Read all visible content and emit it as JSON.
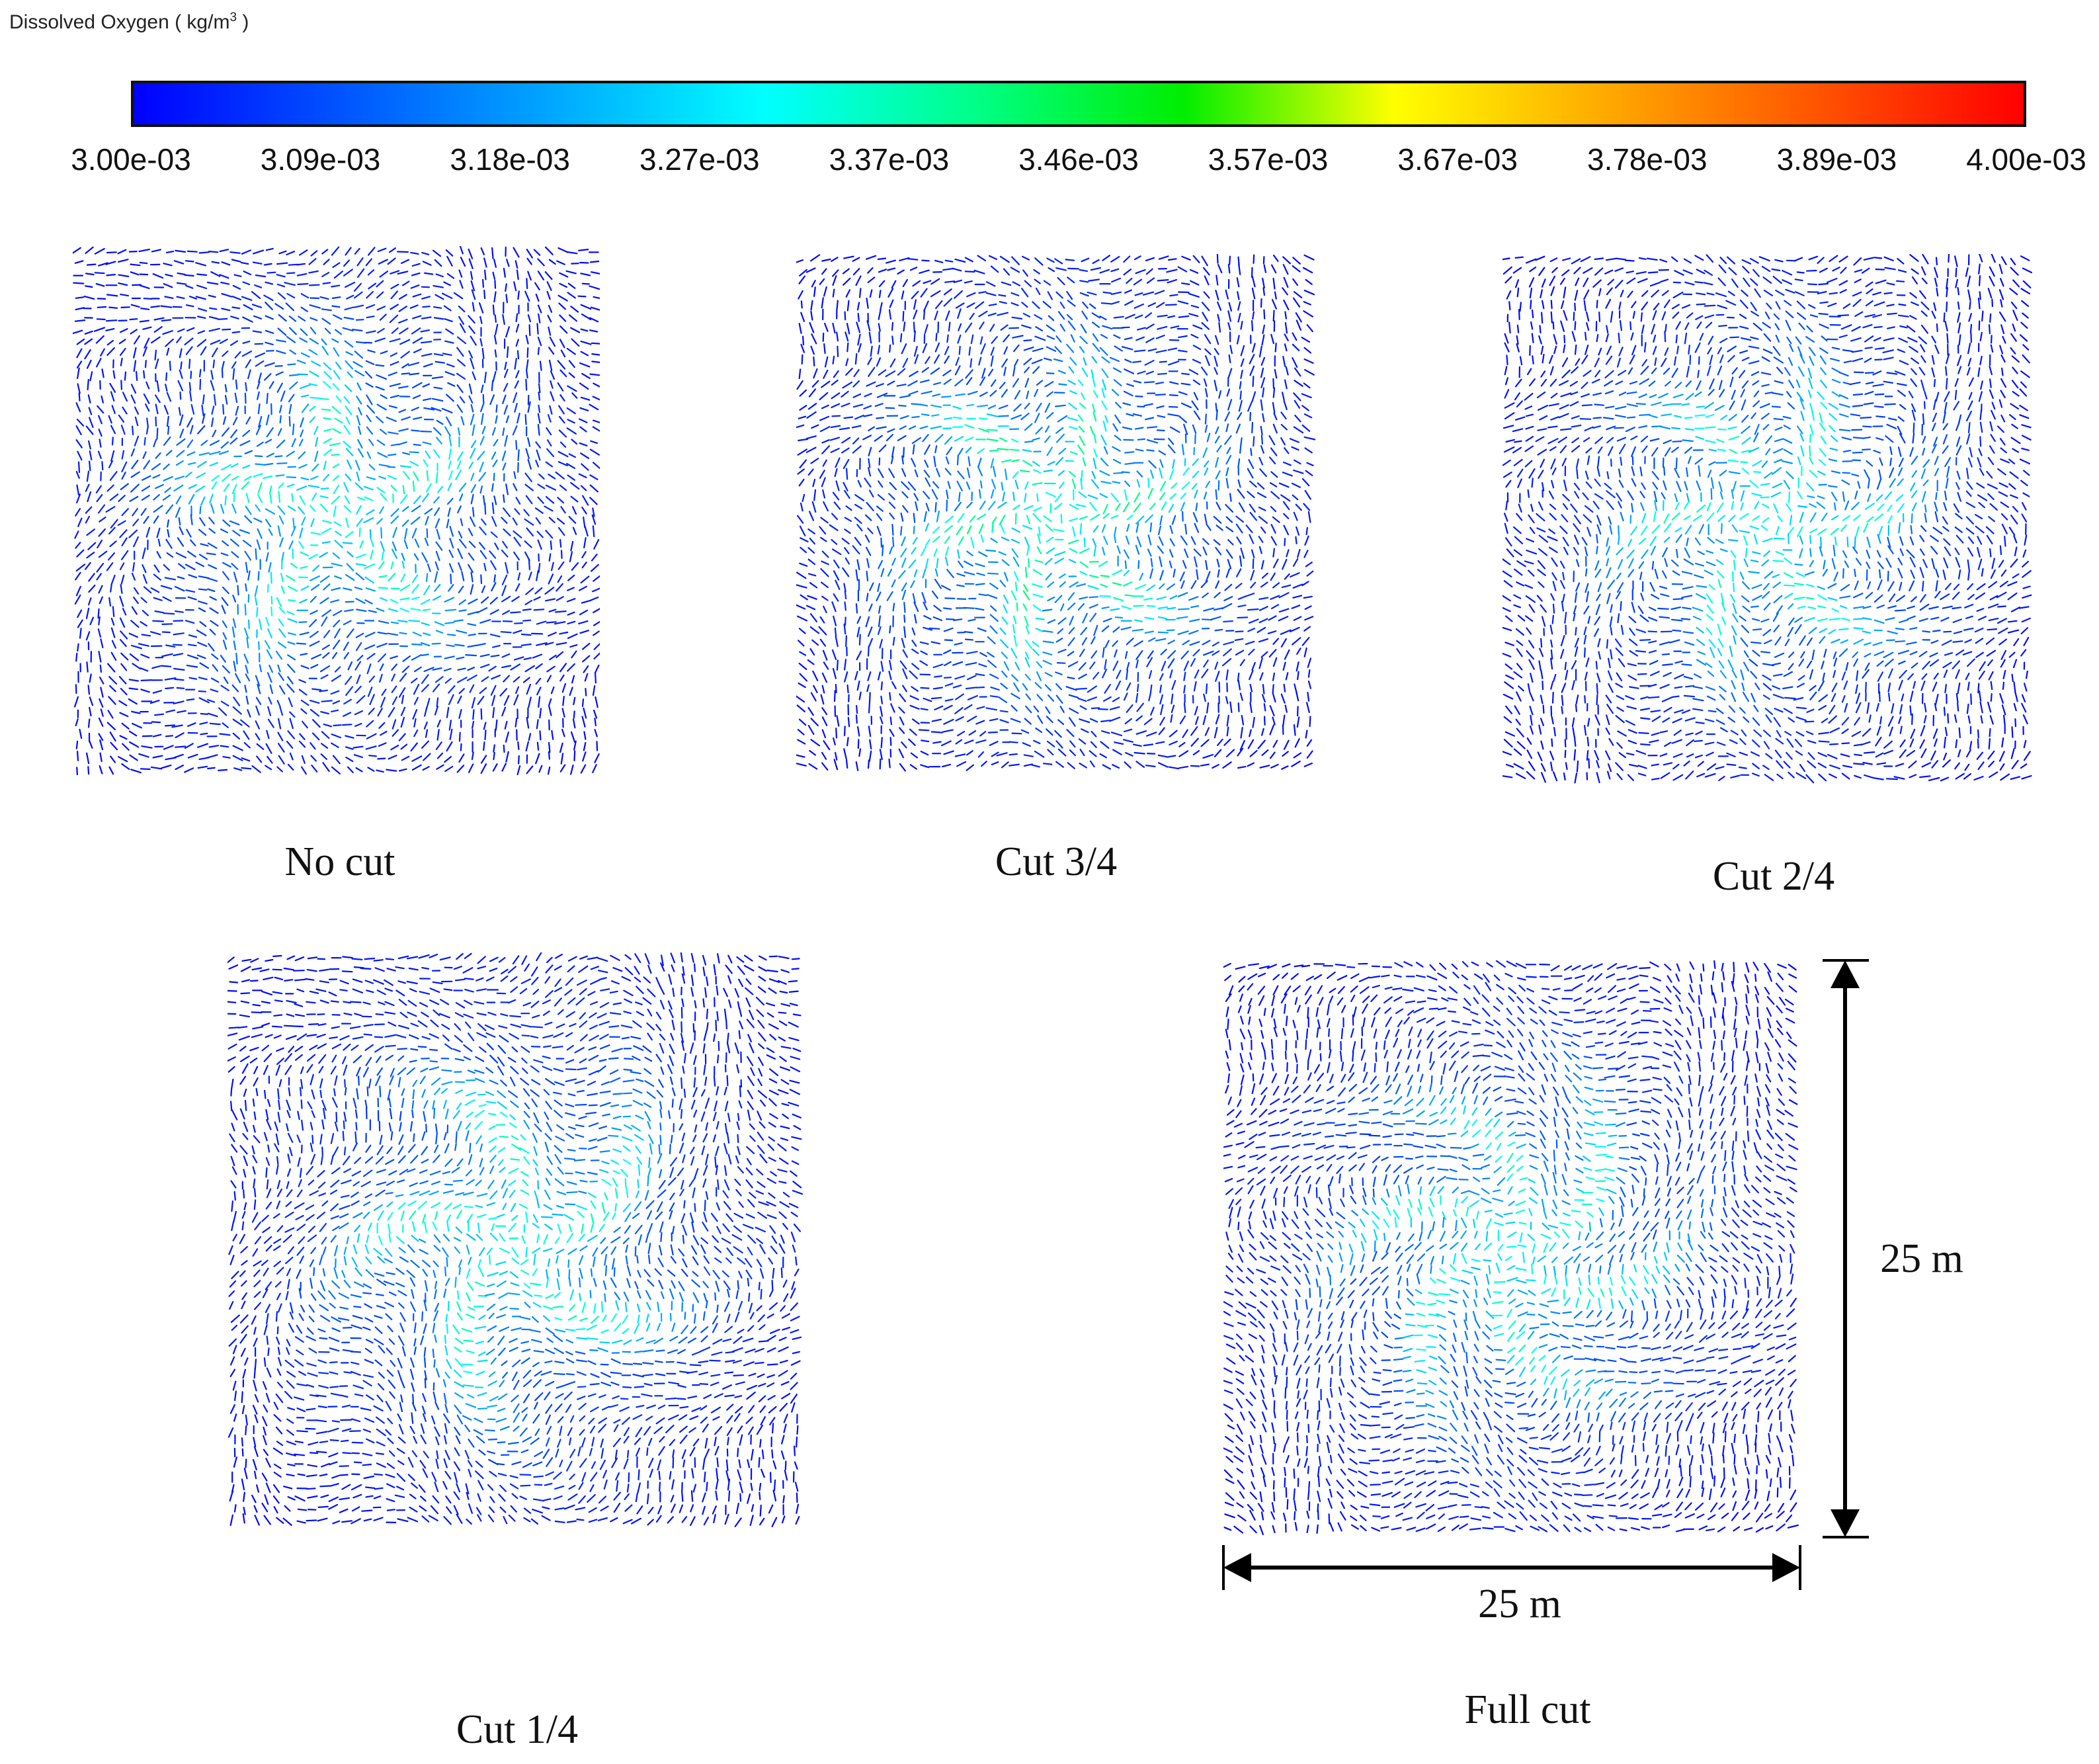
{
  "colorbar": {
    "title_main": "Dissolved Oxygen ( kg/m",
    "title_exp": "3",
    "title_end": " )",
    "ticks": [
      "3.00e-03",
      "3.09e-03",
      "3.18e-03",
      "3.27e-03",
      "3.37e-03",
      "3.46e-03",
      "3.57e-03",
      "3.67e-03",
      "3.78e-03",
      "3.89e-03",
      "4.00e-03"
    ],
    "colors": [
      "#0000ff",
      "#0055ff",
      "#00a8ff",
      "#00ffff",
      "#00ff88",
      "#00ee00",
      "#ffff00",
      "#ffaa00",
      "#ff5500",
      "#ff0000"
    ],
    "vmin": 0.003,
    "vmax": 0.004
  },
  "chart_data": [
    {
      "type": "vector-field",
      "label": "No cut",
      "variable": "Dissolved Oxygen",
      "unit": "kg/m3",
      "lobes": 5,
      "peak_value": 0.00346,
      "background_value": 0.003
    },
    {
      "type": "vector-field",
      "label": "Cut 3/4",
      "variable": "Dissolved Oxygen",
      "unit": "kg/m3",
      "lobes": 6,
      "peak_value": 0.00352,
      "background_value": 0.003
    },
    {
      "type": "vector-field",
      "label": "Cut 2/4",
      "variable": "Dissolved Oxygen",
      "unit": "kg/m3",
      "lobes": 6,
      "peak_value": 0.00345,
      "background_value": 0.003
    },
    {
      "type": "vector-field",
      "label": "Cut 1/4",
      "variable": "Dissolved Oxygen",
      "unit": "kg/m3",
      "lobes": 5,
      "peak_value": 0.00346,
      "background_value": 0.003
    },
    {
      "type": "vector-field",
      "label": "Full cut",
      "variable": "Dissolved Oxygen",
      "unit": "kg/m3",
      "lobes": 6,
      "peak_value": 0.00344,
      "background_value": 0.003
    }
  ],
  "dimensions": {
    "height_label": "25 m",
    "width_label": "25 m"
  }
}
